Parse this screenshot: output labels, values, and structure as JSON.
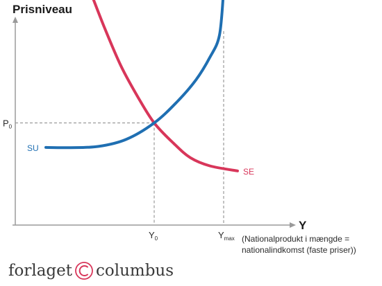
{
  "chart_data": {
    "type": "line",
    "ylabel": "Prisniveau",
    "xlabel": "Y",
    "xlabel_note": [
      "(Nationalprodukt i mængde =",
      "nationalindkomst (faste priser))"
    ],
    "x_ticks": [
      {
        "base": "Y",
        "sub": "0",
        "x": 5.0
      },
      {
        "base": "Y",
        "sub": "max",
        "x": 7.5
      }
    ],
    "y_ticks": [
      {
        "base": "P",
        "sub": "0",
        "y": 5.0
      }
    ],
    "xlim": [
      0,
      10
    ],
    "ylim": [
      0,
      10
    ],
    "series": [
      {
        "name": "SU",
        "color": "#1f6fb2",
        "points": [
          [
            1.1,
            3.8
          ],
          [
            2.0,
            3.79
          ],
          [
            3.0,
            3.85
          ],
          [
            4.0,
            4.2
          ],
          [
            5.0,
            5.0
          ],
          [
            5.8,
            6.0
          ],
          [
            6.5,
            7.1
          ],
          [
            7.0,
            8.2
          ],
          [
            7.35,
            9.3
          ],
          [
            7.5,
            11.5
          ]
        ]
      },
      {
        "name": "SE",
        "color": "#d8365a",
        "points": [
          [
            2.6,
            11.8
          ],
          [
            3.2,
            9.7
          ],
          [
            3.8,
            7.8
          ],
          [
            4.4,
            6.3
          ],
          [
            5.0,
            5.0
          ],
          [
            5.7,
            4.0
          ],
          [
            6.3,
            3.3
          ],
          [
            7.0,
            2.9
          ],
          [
            8.0,
            2.65
          ]
        ]
      }
    ],
    "grid": false
  },
  "publisher": {
    "name_left": "forlaget",
    "name_right": "columbus",
    "logo_icon": "copyright-c-icon",
    "accent": "#d8365a"
  }
}
